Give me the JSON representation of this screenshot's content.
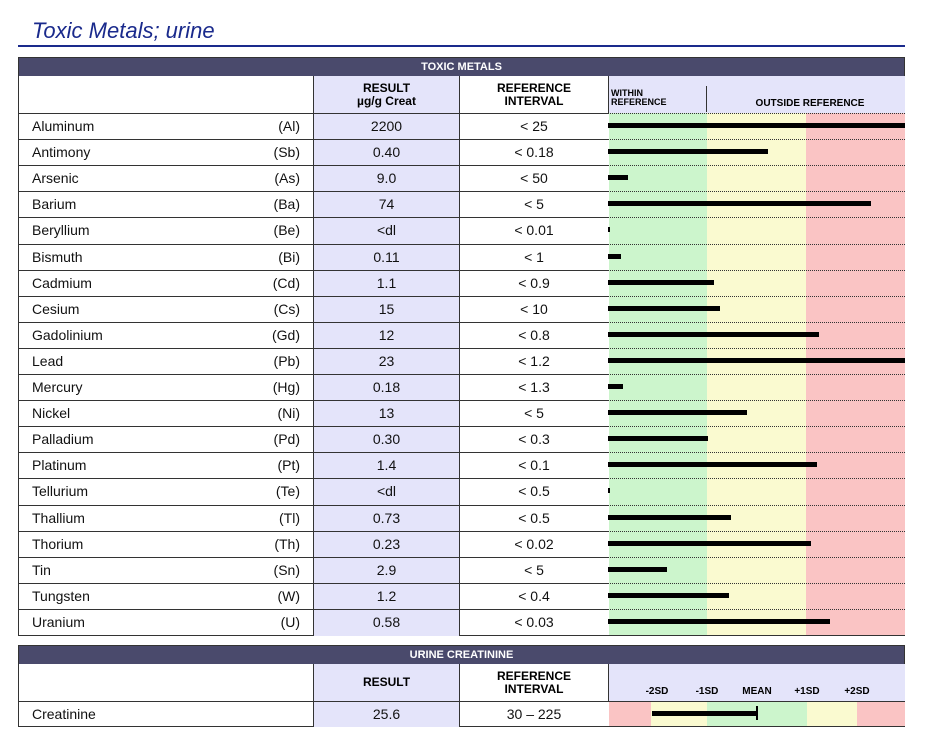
{
  "title": "Toxic Metals; urine",
  "metals": {
    "header": "TOXIC METALS",
    "result_label": "RESULT",
    "result_unit": "µg/g Creat",
    "reference_label": "REFERENCE INTERVAL",
    "within_label": "WITHIN REFERENCE",
    "outside_label": "OUTSIDE REFERENCE",
    "rows": [
      [
        "Aluminum",
        "(Al)",
        "2200",
        "< 25"
      ],
      [
        "Antimony",
        "(Sb)",
        "0.40",
        "< 0.18"
      ],
      [
        "Arsenic",
        "(As)",
        "9.0",
        "< 50"
      ],
      [
        "Barium",
        "(Ba)",
        "74",
        "< 5"
      ],
      [
        "Beryllium",
        "(Be)",
        "<dl",
        "< 0.01"
      ],
      [
        "Bismuth",
        "(Bi)",
        "0.11",
        "< 1"
      ],
      [
        "Cadmium",
        "(Cd)",
        "1.1",
        "< 0.9"
      ],
      [
        "Cesium",
        "(Cs)",
        "15",
        "< 10"
      ],
      [
        "Gadolinium",
        "(Gd)",
        "12",
        "< 0.8"
      ],
      [
        "Lead",
        "(Pb)",
        "23",
        "< 1.2"
      ],
      [
        "Mercury",
        "(Hg)",
        "0.18",
        "< 1.3"
      ],
      [
        "Nickel",
        "(Ni)",
        "13",
        "< 5"
      ],
      [
        "Palladium",
        "(Pd)",
        "0.30",
        "< 0.3"
      ],
      [
        "Platinum",
        "(Pt)",
        "1.4",
        "< 0.1"
      ],
      [
        "Tellurium",
        "(Te)",
        "<dl",
        "< 0.5"
      ],
      [
        "Thallium",
        "(Tl)",
        "0.73",
        "< 0.5"
      ],
      [
        "Thorium",
        "(Th)",
        "0.23",
        "< 0.02"
      ],
      [
        "Tin",
        "(Sn)",
        "2.9",
        "< 5"
      ],
      [
        "Tungsten",
        "(W)",
        "1.2",
        "< 0.4"
      ],
      [
        "Uranium",
        "(U)",
        "0.58",
        "< 0.03"
      ]
    ]
  },
  "creatinine": {
    "header": "URINE CREATININE",
    "result_label": "RESULT",
    "reference_label": "REFERENCE INTERVAL",
    "sd_labels": [
      "-2SD",
      "-1SD",
      "MEAN",
      "+1SD",
      "+2SD"
    ],
    "row": [
      "Creatinine",
      "25.6",
      "30 – 225"
    ]
  }
}
